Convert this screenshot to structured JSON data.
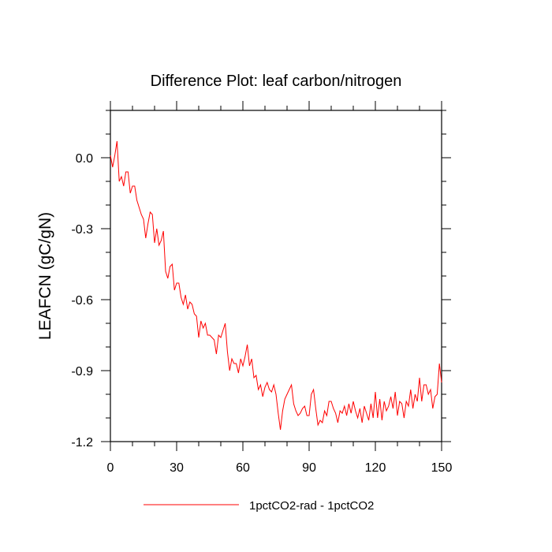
{
  "chart_data": {
    "type": "line",
    "title": "Difference Plot: leaf carbon/nitrogen",
    "xlabel": "",
    "ylabel": "LEAFCN  (gC/gN)",
    "xlim": [
      0,
      150
    ],
    "ylim": [
      -1.2,
      0.2
    ],
    "xticks": [
      0,
      30,
      60,
      90,
      120,
      150
    ],
    "xtick_labels": [
      "0",
      "30",
      "60",
      "90",
      "120",
      "150"
    ],
    "yticks": [
      0.0,
      -0.3,
      -0.6,
      -0.9,
      -1.2
    ],
    "ytick_labels": [
      "0.0",
      "-0.3",
      "-0.6",
      "-0.9",
      "-1.2"
    ],
    "grid": false,
    "legend": "bottom-center",
    "series": [
      {
        "name": "1pctCO2-rad - 1pctCO2",
        "color": "#ff0000",
        "x": [
          0,
          1,
          2,
          3,
          4,
          5,
          6,
          7,
          8,
          9,
          10,
          11,
          12,
          13,
          14,
          15,
          16,
          17,
          18,
          19,
          20,
          21,
          22,
          23,
          24,
          25,
          26,
          27,
          28,
          29,
          30,
          31,
          32,
          33,
          34,
          35,
          36,
          37,
          38,
          39,
          40,
          41,
          42,
          43,
          44,
          45,
          46,
          47,
          48,
          49,
          50,
          51,
          52,
          53,
          54,
          55,
          56,
          57,
          58,
          59,
          60,
          61,
          62,
          63,
          64,
          65,
          66,
          67,
          68,
          69,
          70,
          71,
          72,
          73,
          74,
          75,
          76,
          77,
          78,
          79,
          80,
          81,
          82,
          83,
          84,
          85,
          86,
          87,
          88,
          89,
          90,
          91,
          92,
          93,
          94,
          95,
          96,
          97,
          98,
          99,
          100,
          101,
          102,
          103,
          104,
          105,
          106,
          107,
          108,
          109,
          110,
          111,
          112,
          113,
          114,
          115,
          116,
          117,
          118,
          119,
          120,
          121,
          122,
          123,
          124,
          125,
          126,
          127,
          128,
          129,
          130,
          131,
          132,
          133,
          134,
          135,
          136,
          137,
          138,
          139,
          140,
          141,
          142,
          143,
          144,
          145,
          146,
          147,
          148,
          149,
          150
        ],
        "y": [
          0.01,
          -0.04,
          0.01,
          0.07,
          -0.1,
          -0.08,
          -0.12,
          -0.06,
          -0.06,
          -0.15,
          -0.12,
          -0.12,
          -0.18,
          -0.21,
          -0.24,
          -0.26,
          -0.34,
          -0.28,
          -0.23,
          -0.24,
          -0.36,
          -0.3,
          -0.37,
          -0.35,
          -0.31,
          -0.48,
          -0.51,
          -0.46,
          -0.45,
          -0.56,
          -0.53,
          -0.53,
          -0.59,
          -0.62,
          -0.58,
          -0.64,
          -0.61,
          -0.62,
          -0.66,
          -0.67,
          -0.76,
          -0.69,
          -0.72,
          -0.7,
          -0.75,
          -0.75,
          -0.76,
          -0.77,
          -0.83,
          -0.75,
          -0.76,
          -0.73,
          -0.7,
          -0.82,
          -0.9,
          -0.85,
          -0.87,
          -0.87,
          -0.91,
          -0.85,
          -0.88,
          -0.84,
          -0.79,
          -0.88,
          -0.85,
          -0.93,
          -0.92,
          -0.98,
          -0.96,
          -1.01,
          -0.97,
          -0.95,
          -0.98,
          -0.99,
          -0.96,
          -1.0,
          -1.08,
          -1.15,
          -1.07,
          -1.02,
          -1.0,
          -0.98,
          -0.96,
          -1.04,
          -1.07,
          -1.09,
          -1.08,
          -1.06,
          -1.05,
          -1.09,
          -1.09,
          -1.0,
          -0.98,
          -1.06,
          -1.13,
          -1.11,
          -1.12,
          -1.07,
          -1.09,
          -1.03,
          -1.03,
          -1.06,
          -1.08,
          -1.12,
          -1.07,
          -1.08,
          -1.05,
          -1.09,
          -1.04,
          -1.08,
          -1.03,
          -1.07,
          -1.1,
          -1.06,
          -1.12,
          -1.05,
          -1.08,
          -1.11,
          -1.04,
          -1.1,
          -0.99,
          -1.1,
          -1.02,
          -1.11,
          -1.03,
          -1.07,
          -1.05,
          -1.01,
          -1.06,
          -0.99,
          -1.09,
          -1.03,
          -1.04,
          -1.1,
          -1.03,
          -1.05,
          -0.98,
          -1.06,
          -1.0,
          -1.03,
          -0.93,
          -1.03,
          -0.96,
          -0.96,
          -1.0,
          -0.98,
          -1.06,
          -1.01,
          -1.0,
          -0.87,
          -0.95
        ]
      }
    ]
  }
}
